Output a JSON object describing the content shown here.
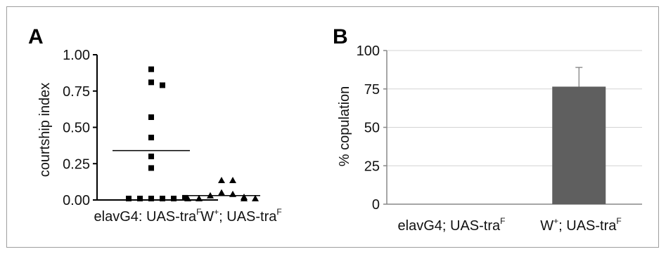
{
  "chart_data": [
    {
      "panel": "A",
      "type": "scatter",
      "ylabel": "courtship index",
      "ylim": [
        0,
        1.0
      ],
      "yticks": [
        "0.00",
        "0.25",
        "0.50",
        "0.75",
        "1.00"
      ],
      "yticks_values": [
        0,
        0.25,
        0.5,
        0.75,
        1.0
      ],
      "categories": [
        {
          "main": "elavG4: UAS-tra",
          "sup": "F"
        },
        {
          "main": "W",
          "sup": "+",
          "rest": "; UAS-tra",
          "sup2": "F"
        }
      ],
      "series": [
        {
          "category_index": 0,
          "marker": "square",
          "values": [
            0.9,
            0.81,
            0.79,
            0.57,
            0.43,
            0.3,
            0.22,
            0.01,
            0.01,
            0.01,
            0.01,
            0.01,
            0.015
          ],
          "mean": 0.34
        },
        {
          "category_index": 1,
          "marker": "triangle",
          "values": [
            0.135,
            0.135,
            0.05,
            0.04,
            0.03,
            0.02,
            0.01,
            0.01,
            0.01,
            0.01
          ],
          "mean": 0.03
        }
      ]
    },
    {
      "panel": "B",
      "type": "bar",
      "ylabel": "% copulation",
      "ylim": [
        0,
        100
      ],
      "yticks": [
        "0",
        "25",
        "50",
        "75",
        "100"
      ],
      "yticks_values": [
        0,
        25,
        50,
        75,
        100
      ],
      "grid": true,
      "categories": [
        {
          "main": "elavG4; UAS-tra",
          "sup": "F"
        },
        {
          "main": "W",
          "sup": "+",
          "rest": "; UAS-tra",
          "sup2": "F"
        }
      ],
      "values": [
        0,
        76.5
      ],
      "error": [
        0,
        12.5
      ],
      "bar_color": "#5f5f5f"
    }
  ]
}
